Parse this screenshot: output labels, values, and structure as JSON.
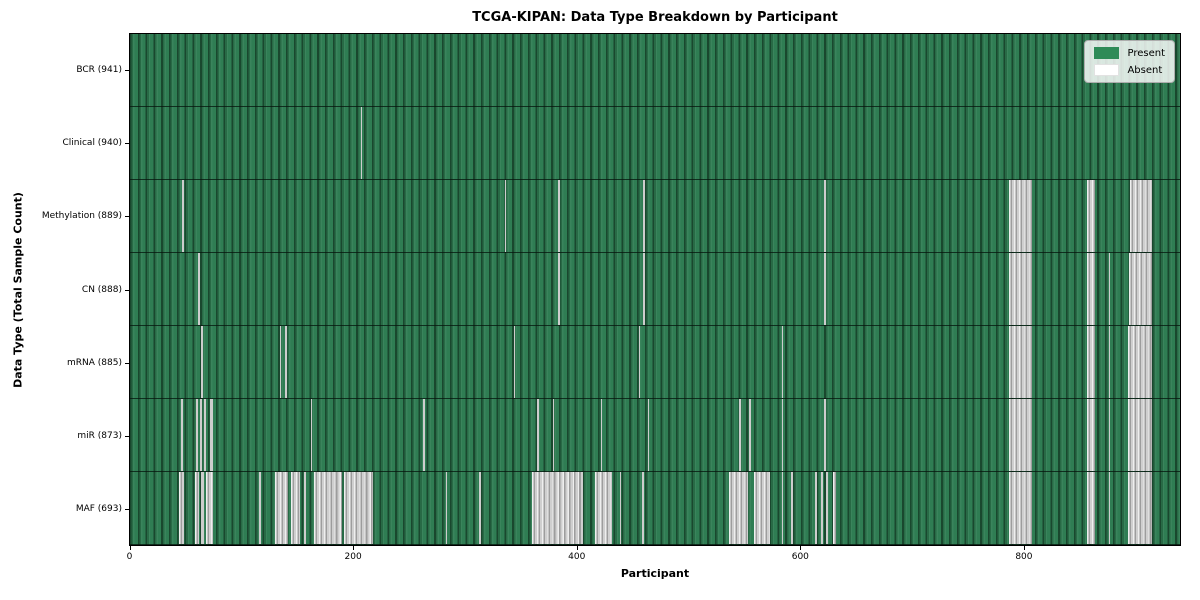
{
  "title": "TCGA-KIPAN: Data Type Breakdown by Participant",
  "legend": {
    "present_label": "Present",
    "absent_label": "Absent",
    "present_color": "#2e8b57",
    "absent_color": "#ffffff"
  },
  "chart_data": {
    "type": "heatmap",
    "title": "TCGA-KIPAN: Data Type Breakdown by Participant",
    "xlabel": "Participant",
    "ylabel": "Data Type (Total Sample Count)",
    "legend_position": "upper right",
    "grid": false,
    "n_participants": 941,
    "xlim": [
      -0.5,
      940.5
    ],
    "x_ticks": [
      0,
      200,
      400,
      600,
      800
    ],
    "x_tick_labels": [
      "0",
      "200",
      "400",
      "600",
      "800"
    ],
    "colors": {
      "present": "#2e8b57",
      "absent": "#ffffff"
    },
    "rows": [
      {
        "data_type": "BCR",
        "label": "BCR (941)",
        "present_count": 941,
        "absent_count": 0,
        "absent_ranges": []
      },
      {
        "data_type": "Clinical",
        "label": "Clinical (940)",
        "present_count": 940,
        "absent_count": 1,
        "absent_ranges": [
          [
            207,
            208
          ]
        ]
      },
      {
        "data_type": "Methylation",
        "label": "Methylation (889)",
        "present_count": 889,
        "absent_count": 52,
        "absent_ranges": [
          [
            47,
            48
          ],
          [
            336,
            337
          ],
          [
            384,
            385
          ],
          [
            460,
            461
          ],
          [
            622,
            623
          ],
          [
            788,
            808
          ],
          [
            858,
            865
          ],
          [
            896,
            916
          ]
        ]
      },
      {
        "data_type": "CN",
        "label": "CN (888)",
        "present_count": 888,
        "absent_count": 53,
        "absent_ranges": [
          [
            61,
            62
          ],
          [
            384,
            385
          ],
          [
            460,
            461
          ],
          [
            622,
            623
          ],
          [
            788,
            808
          ],
          [
            858,
            865
          ],
          [
            877,
            878
          ],
          [
            895,
            916
          ]
        ]
      },
      {
        "data_type": "mRNA",
        "label": "mRNA (885)",
        "present_count": 885,
        "absent_count": 56,
        "absent_ranges": [
          [
            64,
            65
          ],
          [
            134,
            135
          ],
          [
            139,
            140
          ],
          [
            344,
            345
          ],
          [
            456,
            457
          ],
          [
            584,
            585
          ],
          [
            788,
            808
          ],
          [
            858,
            865
          ],
          [
            877,
            878
          ],
          [
            894,
            916
          ]
        ]
      },
      {
        "data_type": "miR",
        "label": "miR (873)",
        "present_count": 873,
        "absent_count": 68,
        "absent_ranges": [
          [
            46,
            47
          ],
          [
            59,
            61
          ],
          [
            63,
            64
          ],
          [
            66,
            68
          ],
          [
            72,
            74
          ],
          [
            162,
            163
          ],
          [
            263,
            264
          ],
          [
            365,
            366
          ],
          [
            379,
            380
          ],
          [
            422,
            423
          ],
          [
            464,
            465
          ],
          [
            546,
            547
          ],
          [
            555,
            556
          ],
          [
            584,
            585
          ],
          [
            622,
            623
          ],
          [
            788,
            808
          ],
          [
            858,
            865
          ],
          [
            877,
            878
          ],
          [
            894,
            916
          ]
        ]
      },
      {
        "data_type": "MAF",
        "label": "MAF (693)",
        "present_count": 693,
        "absent_count": 248,
        "absent_ranges": [
          [
            44,
            48
          ],
          [
            58,
            62
          ],
          [
            64,
            66
          ],
          [
            68,
            74
          ],
          [
            116,
            117
          ],
          [
            130,
            142
          ],
          [
            144,
            152
          ],
          [
            156,
            157
          ],
          [
            165,
            190
          ],
          [
            192,
            218
          ],
          [
            283,
            284
          ],
          [
            313,
            314
          ],
          [
            360,
            406
          ],
          [
            417,
            432
          ],
          [
            439,
            440
          ],
          [
            459,
            460
          ],
          [
            537,
            554
          ],
          [
            559,
            574
          ],
          [
            584,
            585
          ],
          [
            592,
            594
          ],
          [
            614,
            616
          ],
          [
            619,
            621
          ],
          [
            624,
            626
          ],
          [
            630,
            633
          ],
          [
            788,
            808
          ],
          [
            858,
            865
          ],
          [
            877,
            878
          ],
          [
            894,
            916
          ]
        ]
      }
    ]
  }
}
